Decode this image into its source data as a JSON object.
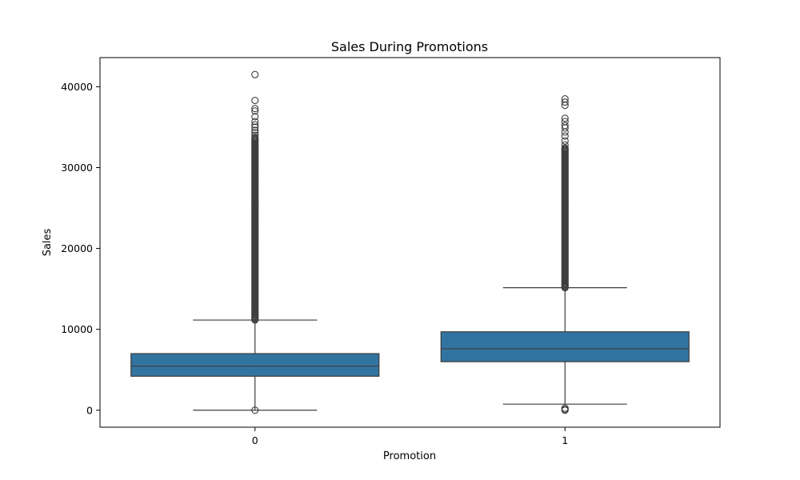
{
  "chart_data": {
    "type": "box",
    "title": "Sales During Promotions",
    "xlabel": "Promotion",
    "ylabel": "Sales",
    "categories": [
      "0",
      "1"
    ],
    "ylim": [
      -2100,
      43600
    ],
    "yticks": [
      0,
      10000,
      20000,
      30000,
      40000
    ],
    "ytick_labels": [
      "0",
      "10000",
      "20000",
      "30000",
      "40000"
    ],
    "grid": false,
    "legend": "none",
    "box_color": "#3274a1",
    "line_color": "#3d3d3d",
    "boxes": [
      {
        "category": "0",
        "whisker_low": 0,
        "q1": 4200,
        "median": 5450,
        "q3": 7000,
        "whisker_high": 11150,
        "outliers_low": [
          0
        ],
        "outlier_band": [
          11150,
          33800
        ],
        "outliers_high": [
          34000,
          34300,
          34600,
          35000,
          35300,
          35700,
          36300,
          37000,
          37300,
          38300,
          41500
        ]
      },
      {
        "category": "1",
        "whisker_low": 750,
        "q1": 6000,
        "median": 7600,
        "q3": 9700,
        "whisker_high": 15150,
        "outliers_low": [
          0,
          100,
          250
        ],
        "outlier_band": [
          15150,
          32500
        ],
        "outliers_high": [
          32800,
          33300,
          33900,
          34400,
          34900,
          35200,
          35700,
          36100,
          37700,
          38100,
          38500
        ]
      }
    ]
  }
}
